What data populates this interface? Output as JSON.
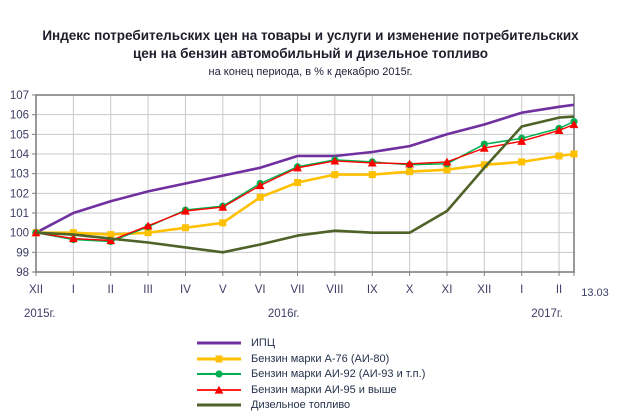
{
  "title": {
    "line1": "Индекс потребительских цен на товары и услуги и изменение потребительских",
    "line2": "цен на бензин автомобильный и дизельное топливо",
    "subtitle": "на конец периода, в % к декабрю 2015г."
  },
  "axis": {
    "y_ticks": [
      107,
      106,
      105,
      104,
      103,
      102,
      101,
      100,
      99,
      98
    ],
    "x_labels": [
      "XII",
      "I",
      "II",
      "III",
      "IV",
      "V",
      "VI",
      "VII",
      "VIII",
      "IX",
      "X",
      "XI",
      "XII",
      "I",
      "II"
    ],
    "date_label": "13.03",
    "year_labels": [
      {
        "text": "2015г.",
        "pos": 0.1
      },
      {
        "text": "2016г.",
        "pos": 6.63
      },
      {
        "text": "2017г.",
        "pos": 13.68
      }
    ]
  },
  "colors": {
    "grid": "#c9c9c9",
    "border": "#808080",
    "axis_text": "#3d3d66",
    "year_text": "#3d3d66",
    "title_text": "#1d1d2b",
    "legend_text": "#26324b"
  },
  "chart_data": {
    "type": "line",
    "title": "Индекс потребительских цен на товары и услуги и изменение потребительских цен на бензин автомобильный и дизельное топливо",
    "subtitle": "на конец периода, в % к декабрю 2015г.",
    "xlabel": "",
    "ylabel": "",
    "ylim": [
      98,
      107
    ],
    "grid": true,
    "legend_position": "bottom",
    "x_categories": [
      "XII 2015",
      "I",
      "II",
      "III",
      "IV",
      "V",
      "VI",
      "VII",
      "VIII",
      "IX",
      "X",
      "XI",
      "XII 2016",
      "I 2017",
      "II 2017",
      "13.03.2017"
    ],
    "x_positions": [
      0,
      1,
      2,
      3,
      4,
      5,
      6,
      7,
      8,
      9,
      10,
      11,
      12,
      13,
      14,
      14.4
    ],
    "series": [
      {
        "name": "ИПЦ",
        "color": "#7030a0",
        "marker": "none",
        "line_width": 2.6,
        "values": [
          100,
          101.0,
          101.6,
          102.1,
          102.5,
          102.9,
          103.3,
          103.9,
          103.9,
          104.1,
          104.4,
          105.0,
          105.5,
          106.1,
          106.4,
          106.5
        ]
      },
      {
        "name": "Бензин марки А-76 (АИ-80)",
        "color": "#ffc000",
        "marker": "square",
        "line_width": 2.6,
        "values": [
          100,
          100.0,
          99.9,
          100.0,
          100.25,
          100.5,
          101.8,
          102.55,
          102.95,
          102.95,
          103.1,
          103.2,
          103.45,
          103.6,
          103.9,
          104.0
        ]
      },
      {
        "name": "Бензин марки АИ-92 (АИ-93 и т.п.)",
        "color": "#00b050",
        "marker": "circle",
        "line_width": 1.5,
        "values": [
          100,
          99.65,
          99.55,
          100.3,
          101.15,
          101.35,
          102.5,
          103.35,
          103.7,
          103.6,
          103.45,
          103.5,
          104.5,
          104.8,
          105.3,
          105.65
        ]
      },
      {
        "name": "Бензин марки АИ-95 и выше",
        "color": "#ff0000",
        "marker": "triangle",
        "line_width": 1.4,
        "values": [
          100,
          99.7,
          99.6,
          100.35,
          101.1,
          101.3,
          102.4,
          103.3,
          103.65,
          103.55,
          103.5,
          103.6,
          104.3,
          104.65,
          105.2,
          105.5
        ]
      },
      {
        "name": "Дизельное топливо",
        "color": "#4f6228",
        "marker": "none",
        "line_width": 2.6,
        "values": [
          100,
          99.9,
          99.7,
          99.5,
          99.25,
          99.0,
          99.4,
          99.85,
          100.1,
          100.0,
          100.0,
          101.1,
          103.3,
          105.4,
          105.85,
          105.9
        ]
      }
    ]
  }
}
